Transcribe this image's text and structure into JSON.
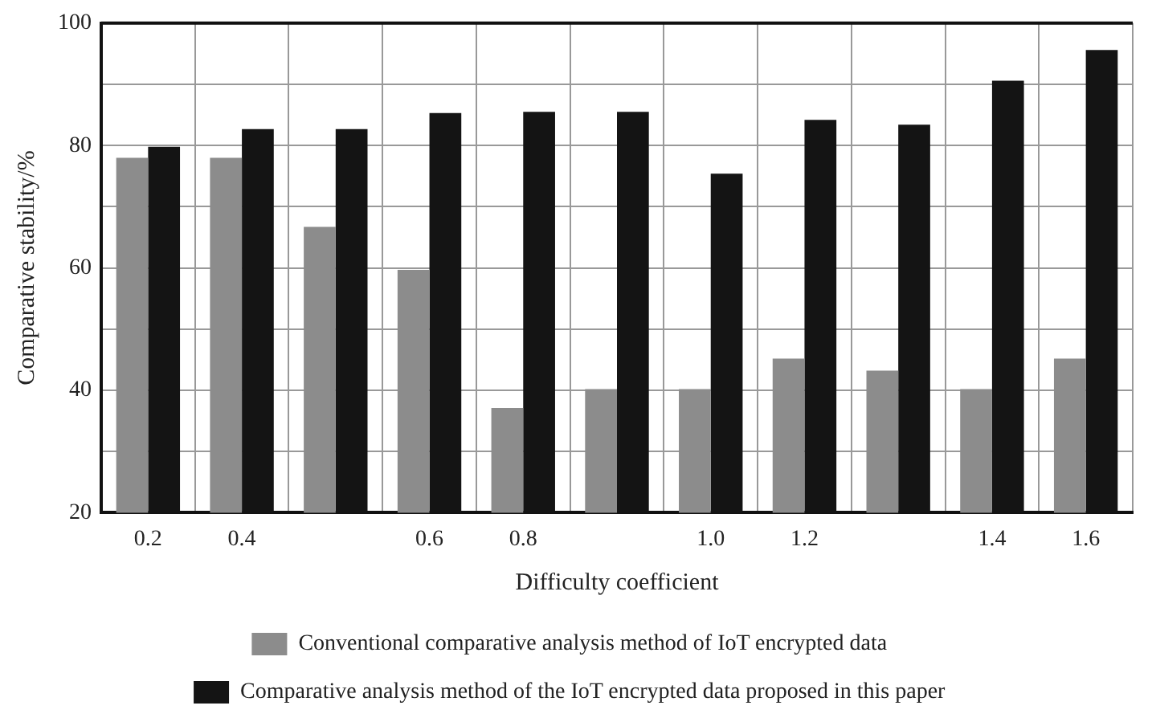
{
  "chart_data": {
    "type": "bar",
    "xlabel": "Difficulty coefficient",
    "ylabel": "Comparative stability/%",
    "categories": [
      "0.2",
      "0.4",
      null,
      "0.6",
      "0.8",
      null,
      "1.0",
      "1.2",
      null,
      "1.4",
      "1.6"
    ],
    "series": [
      {
        "name": "Conventional comparative analysis method of IoT encrypted data",
        "color": "#8c8c8c",
        "values": [
          78,
          78,
          66.7,
          59.7,
          37.1,
          40.2,
          40.2,
          45.2,
          43.2,
          40.2,
          45.2
        ]
      },
      {
        "name": "Comparative analysis method of the IoT encrypted data proposed in this paper",
        "color": "#141414",
        "values": [
          79.8,
          82.7,
          82.7,
          85.3,
          85.5,
          85.5,
          75.4,
          84.2,
          83.4,
          90.6,
          95.6
        ]
      }
    ],
    "ylim": [
      20,
      100
    ],
    "yticks": [
      20,
      {
        "value": 30,
        "label": null
      },
      40,
      {
        "value": 50,
        "label": null
      },
      60,
      {
        "value": 70,
        "label": null
      },
      80,
      {
        "value": 90,
        "label": null
      },
      100
    ],
    "grid": true,
    "legend": "bottom"
  }
}
